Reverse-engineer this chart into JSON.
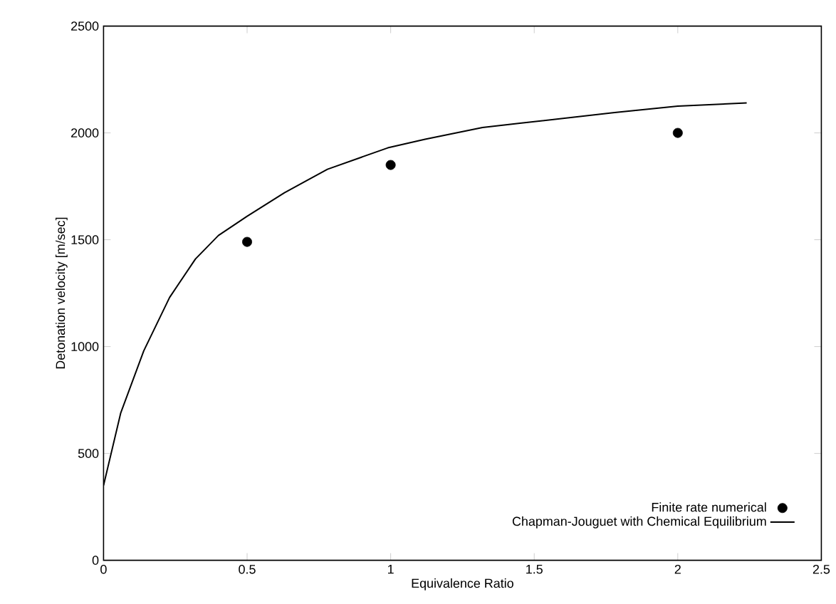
{
  "chart_data": {
    "type": "scatter",
    "xlabel": "Equivalence Ratio",
    "ylabel": "Detonation velocity [m/sec]",
    "xlim": [
      0,
      2.5
    ],
    "ylim": [
      0,
      2500
    ],
    "xticks": [
      0,
      0.5,
      1,
      1.5,
      2,
      2.5
    ],
    "yticks": [
      0,
      500,
      1000,
      1500,
      2000,
      2500
    ],
    "grid": false,
    "legend": "bottom right",
    "series": [
      {
        "name": "Finite rate numerical",
        "marker": "circle",
        "color": "#000000",
        "x": [
          0.5,
          1,
          2
        ],
        "values": [
          1490,
          1850,
          2000
        ]
      },
      {
        "name": "Chapman-Jouguet with Chemical Equilibrium",
        "type": "line",
        "marker": "none",
        "line_style": "solid",
        "color": "#000000",
        "x": [
          0,
          0.06,
          0.14,
          0.23,
          0.32,
          0.4,
          0.5,
          0.63,
          0.78,
          0.99,
          1.12,
          1.32,
          1.45,
          1.78,
          2.0,
          2.24
        ],
        "values": [
          350,
          690,
          980,
          1230,
          1410,
          1520,
          1610,
          1720,
          1830,
          1930,
          1970,
          2025,
          2045,
          2095,
          2125,
          2140
        ]
      }
    ]
  }
}
